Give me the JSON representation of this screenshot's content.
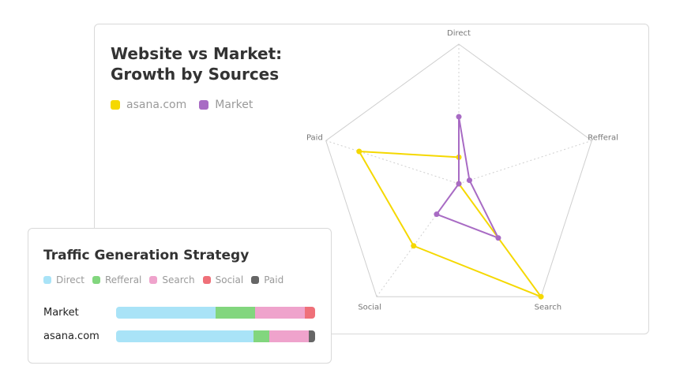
{
  "radar": {
    "title_line1": "Website vs Market:",
    "title_line2": "Growth by Sources",
    "legend": [
      {
        "label": "asana.com",
        "color": "#f5d800"
      },
      {
        "label": "Market",
        "color": "#a86bc4"
      }
    ]
  },
  "bars": {
    "title": "Traffic Generation Strategy",
    "legend": [
      {
        "label": "Direct",
        "color": "#a9e3f7"
      },
      {
        "label": "Refferal",
        "color": "#82d67e"
      },
      {
        "label": "Search",
        "color": "#efa3cc"
      },
      {
        "label": "Social",
        "color": "#ef7079"
      },
      {
        "label": "Paid",
        "color": "#666666"
      }
    ]
  },
  "chart_data": [
    {
      "type": "radar",
      "title": "Website vs Market: Growth by Sources",
      "axes": [
        "Direct",
        "Refferal",
        "Search",
        "Social",
        "Paid"
      ],
      "range": [
        0,
        1
      ],
      "grid": true,
      "legend_position": "top-left",
      "series": [
        {
          "name": "asana.com",
          "color": "#f5d800",
          "values": [
            0.19,
            0.0,
            1.0,
            0.55,
            0.75
          ]
        },
        {
          "name": "Market",
          "color": "#a86bc4",
          "values": [
            0.48,
            0.08,
            0.48,
            0.27,
            0.0
          ]
        }
      ]
    },
    {
      "type": "bar",
      "orientation": "horizontal",
      "stacked": true,
      "title": "Traffic Generation Strategy",
      "categories": [
        "Market",
        "asana.com"
      ],
      "series": [
        {
          "name": "Direct",
          "color": "#a9e3f7",
          "values": [
            50,
            69
          ]
        },
        {
          "name": "Refferal",
          "color": "#82d67e",
          "values": [
            20,
            8
          ]
        },
        {
          "name": "Search",
          "color": "#efa3cc",
          "values": [
            25,
            20
          ]
        },
        {
          "name": "Social",
          "color": "#ef7079",
          "values": [
            5,
            0
          ]
        },
        {
          "name": "Paid",
          "color": "#666666",
          "values": [
            0,
            3
          ]
        }
      ]
    }
  ]
}
